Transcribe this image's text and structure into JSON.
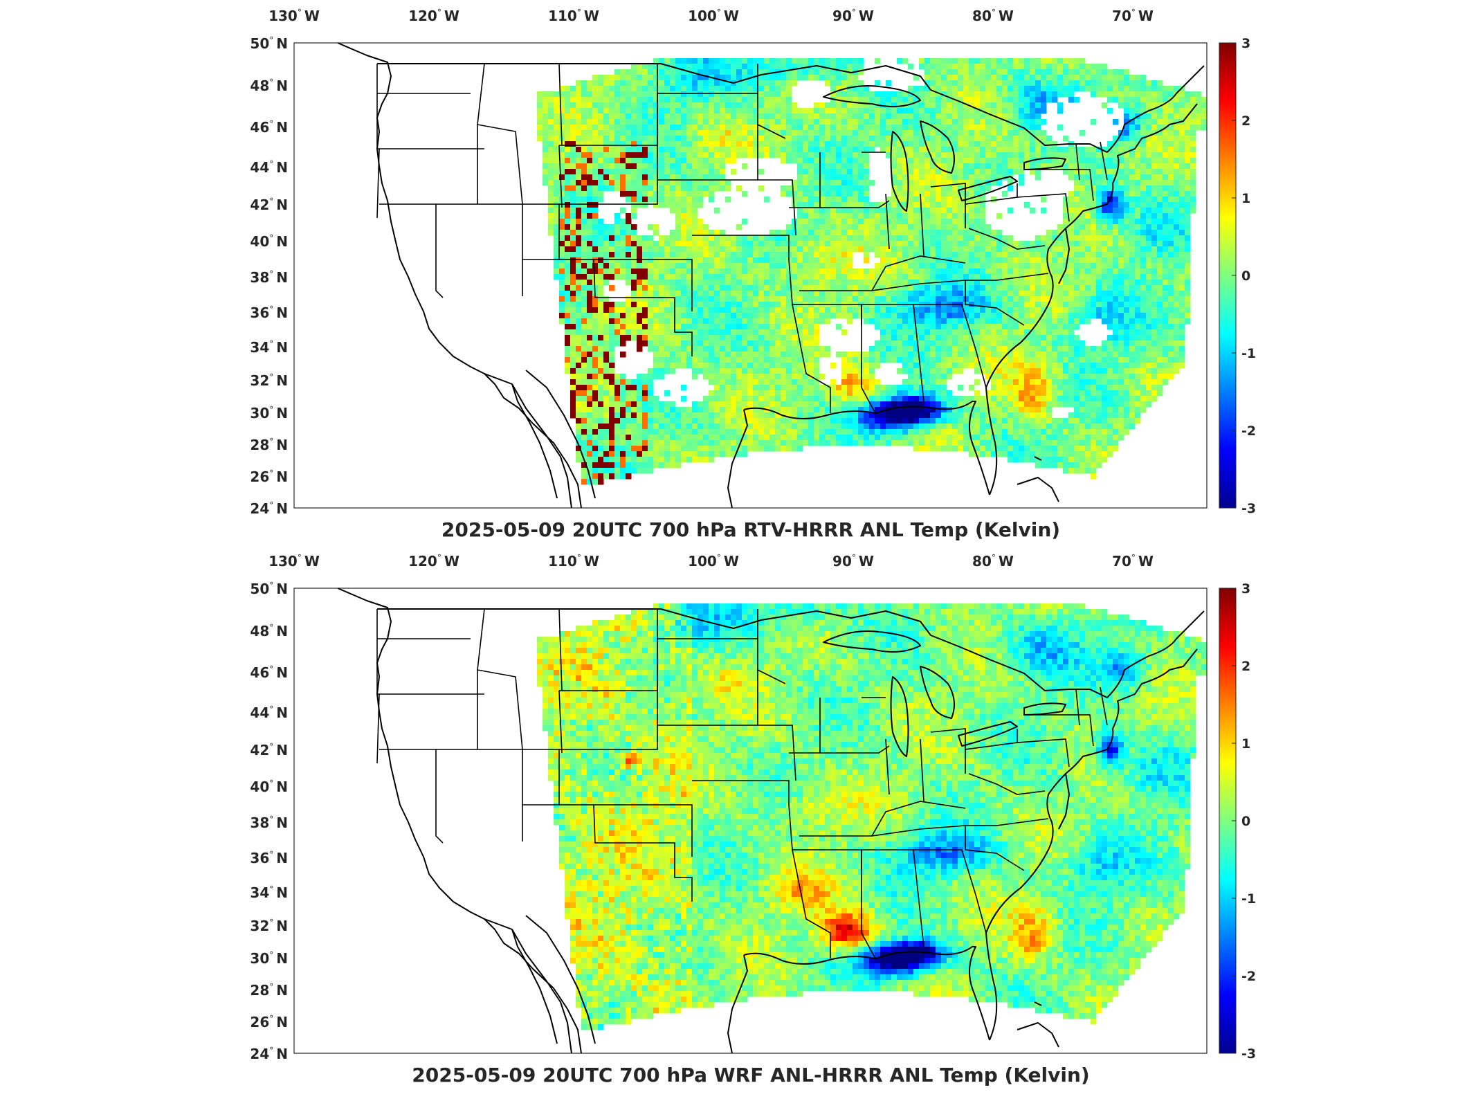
{
  "panels": [
    {
      "title": "2025-05-09 20UTC 700 hPa RTV-HRRR ANL Temp (Kelvin)",
      "field": "rtv",
      "has_missing_data": true
    },
    {
      "title": "2025-05-09 20UTC 700 hPa WRF ANL-HRRR ANL Temp (Kelvin)",
      "field": "wrf",
      "has_missing_data": false
    }
  ],
  "lon_ticks": [
    {
      "deg": "130",
      "hemi": "W"
    },
    {
      "deg": "120",
      "hemi": "W"
    },
    {
      "deg": "110",
      "hemi": "W"
    },
    {
      "deg": "100",
      "hemi": "W"
    },
    {
      "deg": "90",
      "hemi": "W"
    },
    {
      "deg": "80",
      "hemi": "W"
    },
    {
      "deg": "70",
      "hemi": "W"
    }
  ],
  "lat_ticks": [
    {
      "deg": "50",
      "hemi": "N"
    },
    {
      "deg": "48",
      "hemi": "N"
    },
    {
      "deg": "46",
      "hemi": "N"
    },
    {
      "deg": "44",
      "hemi": "N"
    },
    {
      "deg": "42",
      "hemi": "N"
    },
    {
      "deg": "40",
      "hemi": "N"
    },
    {
      "deg": "38",
      "hemi": "N"
    },
    {
      "deg": "36",
      "hemi": "N"
    },
    {
      "deg": "34",
      "hemi": "N"
    },
    {
      "deg": "32",
      "hemi": "N"
    },
    {
      "deg": "30",
      "hemi": "N"
    },
    {
      "deg": "28",
      "hemi": "N"
    },
    {
      "deg": "26",
      "hemi": "N"
    },
    {
      "deg": "24",
      "hemi": "N"
    }
  ],
  "colorbar": {
    "colormap": "jet",
    "range": [
      -3,
      3
    ],
    "tick_labels": [
      "3",
      "2",
      "1",
      "0",
      "-1",
      "-2",
      "-3"
    ]
  },
  "degree_symbol": "°"
}
